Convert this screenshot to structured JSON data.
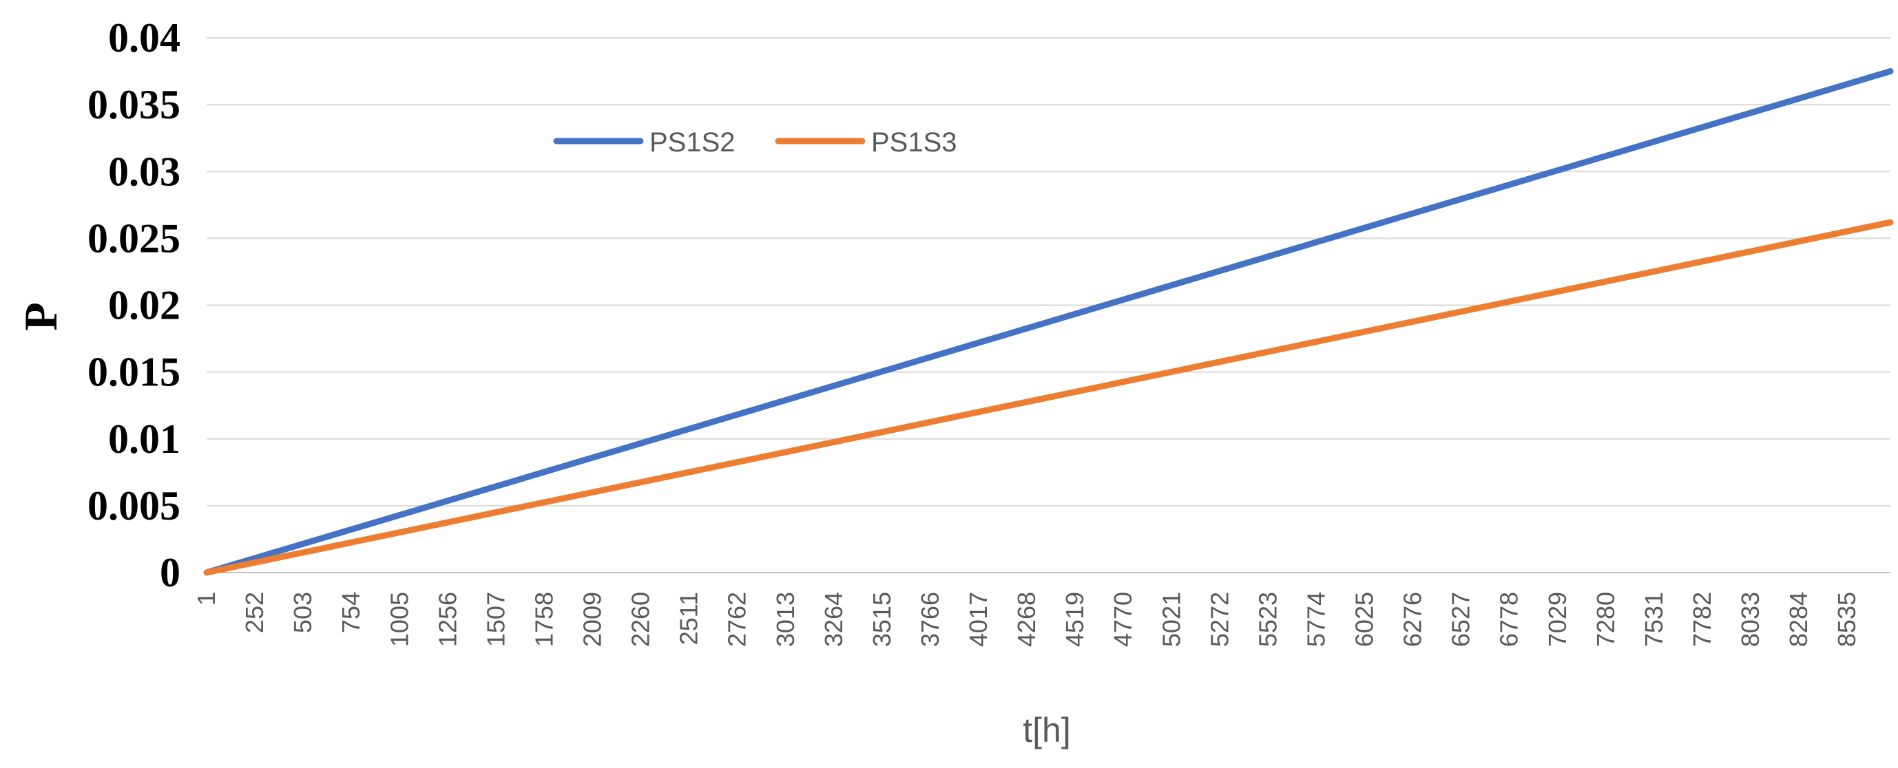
{
  "chart_data": {
    "type": "line",
    "xlabel": "t[h]",
    "ylabel": "P",
    "x_tick_labels": [
      "1",
      "252",
      "503",
      "754",
      "1005",
      "1256",
      "1507",
      "1758",
      "2009",
      "2260",
      "2511",
      "2762",
      "3013",
      "3264",
      "3515",
      "3766",
      "4017",
      "4268",
      "4519",
      "4770",
      "5021",
      "5272",
      "5523",
      "5774",
      "6025",
      "6276",
      "6527",
      "6778",
      "7029",
      "7280",
      "7531",
      "7782",
      "8033",
      "8284",
      "8535"
    ],
    "x_range": [
      1,
      8760
    ],
    "y_ticks": [
      "0",
      "0.005",
      "0.01",
      "0.015",
      "0.02",
      "0.025",
      "0.03",
      "0.035",
      "0.04"
    ],
    "ylim": [
      0,
      0.04
    ],
    "grid": "horizontal",
    "legend_position": "top-left",
    "series": [
      {
        "name": "PS1S2",
        "color": "#4472C4",
        "x": [
          1,
          8760
        ],
        "y": [
          0,
          0.0375
        ]
      },
      {
        "name": "PS1S3",
        "color": "#ED7D31",
        "x": [
          1,
          8760
        ],
        "y": [
          0,
          0.0262
        ]
      }
    ]
  }
}
